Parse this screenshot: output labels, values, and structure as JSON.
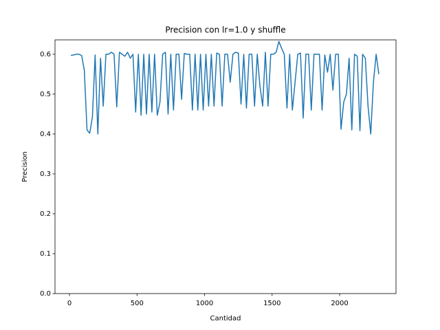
{
  "chart_data": {
    "type": "line",
    "title": "Precision con lr=1.0 y shuffle",
    "x_label": "Cantidad",
    "y_label": "Precision",
    "x": [
      10,
      30,
      50,
      70,
      90,
      110,
      130,
      150,
      170,
      190,
      210,
      230,
      250,
      270,
      290,
      310,
      330,
      350,
      370,
      390,
      410,
      430,
      450,
      470,
      490,
      510,
      530,
      550,
      570,
      590,
      610,
      630,
      650,
      670,
      690,
      710,
      730,
      750,
      770,
      790,
      810,
      830,
      850,
      870,
      890,
      910,
      930,
      950,
      970,
      990,
      1010,
      1030,
      1050,
      1070,
      1090,
      1110,
      1130,
      1150,
      1170,
      1190,
      1210,
      1230,
      1250,
      1270,
      1290,
      1310,
      1330,
      1350,
      1370,
      1390,
      1410,
      1430,
      1450,
      1470,
      1490,
      1510,
      1530,
      1550,
      1570,
      1590,
      1610,
      1630,
      1650,
      1670,
      1690,
      1710,
      1730,
      1750,
      1770,
      1790,
      1810,
      1830,
      1850,
      1870,
      1890,
      1910,
      1930,
      1950,
      1970,
      1990,
      2010,
      2030,
      2050,
      2070,
      2090,
      2110,
      2130,
      2150,
      2170,
      2190,
      2210,
      2230,
      2250,
      2270,
      2290
    ],
    "series": [
      {
        "name": "Precision",
        "color": "#1f77b4",
        "values": [
          0.597,
          0.598,
          0.6,
          0.6,
          0.597,
          0.56,
          0.41,
          0.402,
          0.443,
          0.598,
          0.4,
          0.59,
          0.47,
          0.6,
          0.6,
          0.605,
          0.6,
          0.468,
          0.605,
          0.6,
          0.595,
          0.605,
          0.59,
          0.6,
          0.455,
          0.6,
          0.447,
          0.6,
          0.45,
          0.6,
          0.455,
          0.6,
          0.447,
          0.48,
          0.6,
          0.605,
          0.45,
          0.6,
          0.46,
          0.6,
          0.6,
          0.487,
          0.602,
          0.6,
          0.6,
          0.46,
          0.6,
          0.46,
          0.6,
          0.46,
          0.6,
          0.47,
          0.6,
          0.47,
          0.603,
          0.6,
          0.47,
          0.6,
          0.6,
          0.53,
          0.6,
          0.605,
          0.603,
          0.475,
          0.6,
          0.465,
          0.6,
          0.6,
          0.47,
          0.6,
          0.52,
          0.47,
          0.605,
          0.47,
          0.6,
          0.6,
          0.605,
          0.632,
          0.615,
          0.6,
          0.465,
          0.6,
          0.46,
          0.53,
          0.6,
          0.603,
          0.44,
          0.6,
          0.6,
          0.46,
          0.6,
          0.6,
          0.6,
          0.46,
          0.598,
          0.555,
          0.6,
          0.51,
          0.6,
          0.6,
          0.412,
          0.48,
          0.5,
          0.59,
          0.41,
          0.6,
          0.595,
          0.408,
          0.6,
          0.59,
          0.47,
          0.4,
          0.53,
          0.6,
          0.55
        ]
      }
    ],
    "xlim": [
      -107,
      2417
    ],
    "ylim": [
      0,
      0.636
    ],
    "xticks": [
      0,
      500,
      1000,
      1500,
      2000
    ],
    "yticks": [
      {
        "value": 0,
        "label": "0.0"
      },
      0.1,
      0.2,
      0.3,
      0.4,
      0.5,
      0.6
    ]
  }
}
